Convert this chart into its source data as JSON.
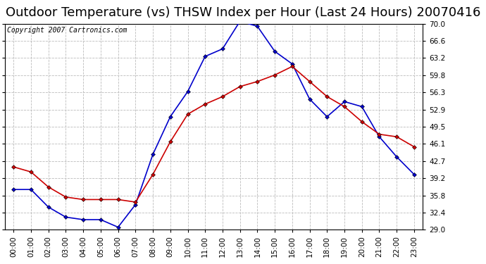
{
  "title": "Outdoor Temperature (vs) THSW Index per Hour (Last 24 Hours) 20070416",
  "copyright": "Copyright 2007 Cartronics.com",
  "hours": [
    "00:00",
    "01:00",
    "02:00",
    "03:00",
    "04:00",
    "05:00",
    "06:00",
    "07:00",
    "08:00",
    "09:00",
    "10:00",
    "11:00",
    "12:00",
    "13:00",
    "14:00",
    "15:00",
    "16:00",
    "17:00",
    "18:00",
    "19:00",
    "20:00",
    "21:00",
    "22:00",
    "23:00"
  ],
  "temp": [
    41.5,
    40.5,
    37.5,
    35.5,
    35.0,
    35.0,
    35.0,
    34.5,
    40.0,
    46.5,
    52.0,
    54.0,
    55.5,
    57.5,
    58.5,
    59.8,
    61.5,
    58.5,
    55.5,
    53.5,
    50.5,
    48.0,
    47.5,
    45.5
  ],
  "thsw": [
    37.0,
    37.0,
    33.5,
    31.5,
    31.0,
    31.0,
    29.5,
    34.0,
    44.0,
    51.5,
    56.5,
    63.5,
    65.0,
    70.5,
    69.5,
    64.5,
    62.0,
    55.0,
    51.5,
    54.5,
    53.5,
    47.5,
    43.5,
    40.0
  ],
  "temp_color": "#cc0000",
  "thsw_color": "#0000cc",
  "background_color": "#ffffff",
  "plot_background": "#ffffff",
  "grid_color": "#bbbbbb",
  "ylim": [
    29.0,
    70.0
  ],
  "yticks": [
    29.0,
    32.4,
    35.8,
    39.2,
    42.7,
    46.1,
    49.5,
    52.9,
    56.3,
    59.8,
    63.2,
    66.6,
    70.0
  ],
  "title_fontsize": 13,
  "axis_fontsize": 7.5,
  "copyright_fontsize": 7
}
